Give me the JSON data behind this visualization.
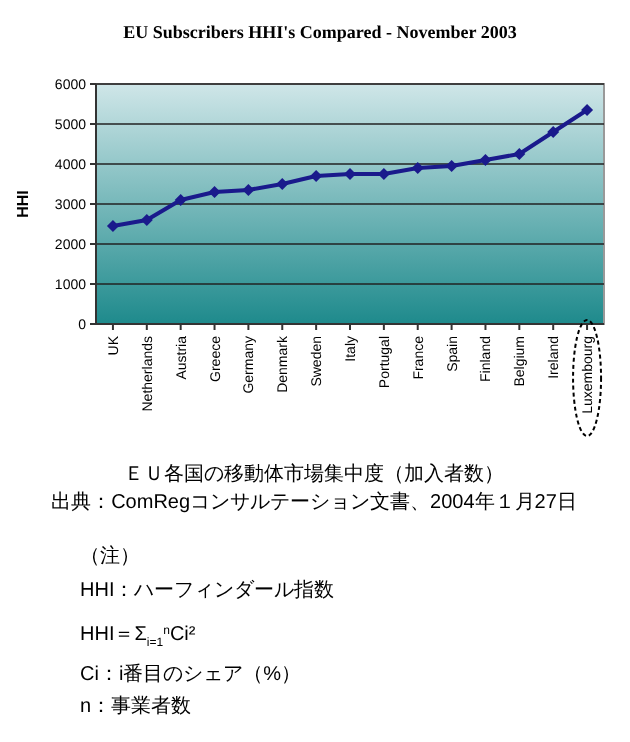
{
  "chart_data": {
    "type": "line",
    "title": "EU Subscribers HHI's Compared - November 2003",
    "ylabel": "HHI",
    "categories": [
      "UK",
      "Netherlands",
      "Austria",
      "Greece",
      "Germany",
      "Denmark",
      "Sweden",
      "Italy",
      "Portugal",
      "France",
      "Spain",
      "Finland",
      "Belgium",
      "Ireland",
      "Luxembourg"
    ],
    "series": [
      {
        "color": "#1a1a8c",
        "values": [
          2450,
          2600,
          3100,
          3300,
          3350,
          3500,
          3700,
          3750,
          3750,
          3900,
          3950,
          4100,
          4250,
          4800,
          5350
        ]
      }
    ],
    "ylim": [
      0,
      6000
    ],
    "yticks": [
      0,
      1000,
      2000,
      3000,
      4000,
      5000,
      6000
    ],
    "grid": "y",
    "marker": "diamond",
    "line_style": "solid",
    "annotations": [
      "ＥＵ各国の移動体市場集中度（加入者数）",
      "出典：ComRegコンサルテーション文書、2004年１月27日",
      "（注）",
      "HHI：ハーフィンダール指数",
      "HHI＝Σ$_{i=1}$$^{n}$Ci²",
      "Ci：i番目のシェア（%）",
      "n：事業者数"
    ]
  }
}
